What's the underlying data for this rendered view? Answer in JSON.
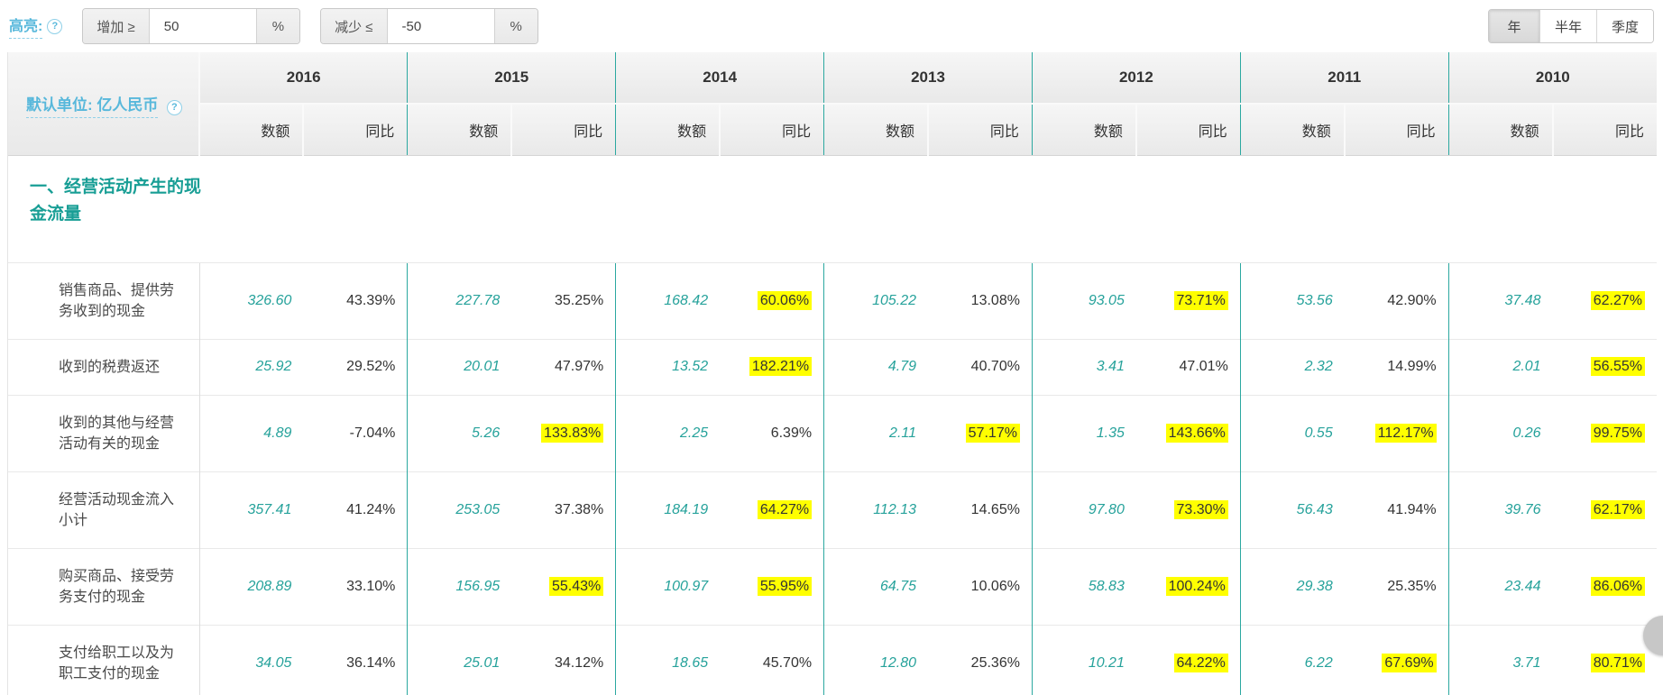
{
  "controls": {
    "highlight_label": "高亮:",
    "help_icon": "?",
    "increase_label": "增加 ≥",
    "increase_value": "50",
    "increase_unit": "%",
    "decrease_label": "减少 ≤",
    "decrease_value": "-50",
    "decrease_unit": "%",
    "period_tabs": [
      {
        "label": "年",
        "active": true
      },
      {
        "label": "半年",
        "active": false
      },
      {
        "label": "季度",
        "active": false
      }
    ]
  },
  "table": {
    "unit_label": "默认单位: 亿人民币",
    "years": [
      "2016",
      "2015",
      "2014",
      "2013",
      "2012",
      "2011",
      "2010"
    ],
    "subheaders": {
      "amount": "数额",
      "yoy": "同比"
    },
    "section_title": "一、经营活动产生的现金流量",
    "highlight_rules": {
      "increase_gte": 50,
      "decrease_lte": -50
    },
    "rows": [
      {
        "label": "销售商品、提供劳务收到的现金",
        "cells": [
          [
            "326.60",
            "43.39%"
          ],
          [
            "227.78",
            "35.25%"
          ],
          [
            "168.42",
            "60.06%"
          ],
          [
            "105.22",
            "13.08%"
          ],
          [
            "93.05",
            "73.71%"
          ],
          [
            "53.56",
            "42.90%"
          ],
          [
            "37.48",
            "62.27%"
          ]
        ]
      },
      {
        "label": "收到的税费返还",
        "cells": [
          [
            "25.92",
            "29.52%"
          ],
          [
            "20.01",
            "47.97%"
          ],
          [
            "13.52",
            "182.21%"
          ],
          [
            "4.79",
            "40.70%"
          ],
          [
            "3.41",
            "47.01%"
          ],
          [
            "2.32",
            "14.99%"
          ],
          [
            "2.01",
            "56.55%"
          ]
        ]
      },
      {
        "label": "收到的其他与经营活动有关的现金",
        "cells": [
          [
            "4.89",
            "-7.04%"
          ],
          [
            "5.26",
            "133.83%"
          ],
          [
            "2.25",
            "6.39%"
          ],
          [
            "2.11",
            "57.17%"
          ],
          [
            "1.35",
            "143.66%"
          ],
          [
            "0.55",
            "112.17%"
          ],
          [
            "0.26",
            "99.75%"
          ]
        ]
      },
      {
        "label": "经营活动现金流入小计",
        "cells": [
          [
            "357.41",
            "41.24%"
          ],
          [
            "253.05",
            "37.38%"
          ],
          [
            "184.19",
            "64.27%"
          ],
          [
            "112.13",
            "14.65%"
          ],
          [
            "97.80",
            "73.30%"
          ],
          [
            "56.43",
            "41.94%"
          ],
          [
            "39.76",
            "62.17%"
          ]
        ]
      },
      {
        "label": "购买商品、接受劳务支付的现金",
        "cells": [
          [
            "208.89",
            "33.10%"
          ],
          [
            "156.95",
            "55.43%"
          ],
          [
            "100.97",
            "55.95%"
          ],
          [
            "64.75",
            "10.06%"
          ],
          [
            "58.83",
            "100.24%"
          ],
          [
            "29.38",
            "25.35%"
          ],
          [
            "23.44",
            "86.06%"
          ]
        ]
      },
      {
        "label": "支付给职工以及为职工支付的现金",
        "cells": [
          [
            "34.05",
            "36.14%"
          ],
          [
            "25.01",
            "34.12%"
          ],
          [
            "18.65",
            "45.70%"
          ],
          [
            "12.80",
            "25.36%"
          ],
          [
            "10.21",
            "64.22%"
          ],
          [
            "6.22",
            "67.69%"
          ],
          [
            "3.71",
            "80.71%"
          ]
        ]
      }
    ]
  },
  "colors": {
    "accent_teal": "#26a29b",
    "section_teal": "#189e95",
    "separator_teal": "#2ba8a0",
    "link_blue": "#58b8db",
    "highlight_yellow": "#ffff00"
  }
}
